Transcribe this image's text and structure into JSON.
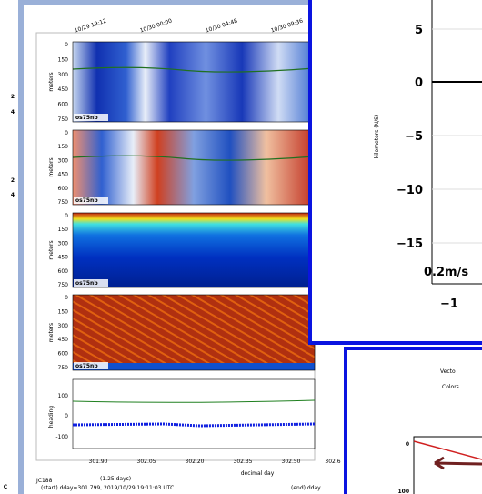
{
  "left_panel": {
    "labels": [
      "2",
      "4",
      "2",
      "4",
      "C"
    ]
  },
  "main_window": {
    "time_labels": [
      "10/29 19:12",
      "10/30 00:00",
      "10/30 04:48",
      "10/30 09:36"
    ],
    "panels": [
      {
        "axis_label": "meters",
        "yticks": [
          "0",
          "150",
          "300",
          "450",
          "600",
          "750"
        ],
        "instrument": "os75nb"
      },
      {
        "axis_label": "meters",
        "yticks": [
          "0",
          "150",
          "300",
          "450",
          "600",
          "750"
        ],
        "instrument": "os75nb"
      },
      {
        "axis_label": "meters",
        "yticks": [
          "0",
          "150",
          "300",
          "450",
          "600",
          "750"
        ],
        "instrument": "os75nb"
      },
      {
        "axis_label": "meters",
        "yticks": [
          "0",
          "150",
          "300",
          "450",
          "600",
          "750"
        ],
        "instrument": "os75nb"
      }
    ],
    "heading_panel": {
      "axis_label": "heading",
      "yticks": [
        "100",
        "0",
        "-100"
      ]
    },
    "xticks": [
      "301.90",
      "302.05",
      "302.20",
      "302.35",
      "302.50",
      "302.6"
    ],
    "xlabel": "decimal day",
    "footer": {
      "cruise": "JC188",
      "duration": "(1.25 days)",
      "start": "(start) dday=301.799,  2019/10/29 19:11:03 UTC",
      "end": "(end) dday"
    }
  },
  "track_window": {
    "ylabel": "kilometers (N/S)",
    "yticks": [
      "5",
      "0",
      "−5",
      "−10",
      "−15"
    ],
    "scale_label": "0.2m/s",
    "xticks": [
      "−1"
    ]
  },
  "vector_window": {
    "title_lines": [
      "Vecto",
      "Colors"
    ],
    "yticks": [
      "0",
      "100"
    ]
  }
}
